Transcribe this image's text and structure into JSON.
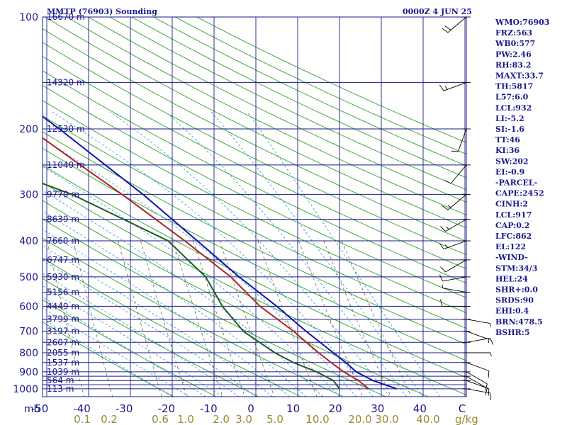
{
  "header": {
    "title": "MMTP (76903) Sounding",
    "time": "0000Z  4 JUN 25"
  },
  "colors": {
    "isobar": "#1a1a8c",
    "isotherm": "#1a1a8c",
    "dry_adiabat": "#2ca02c",
    "moist_adiabat": "#3aa0d8",
    "mixing_ratio": "#7a6a2a",
    "temperature": "#b22222",
    "dewpoint": "#1f5c1f",
    "parcel": "#1010b0",
    "wind": "#000000"
  },
  "indices": [
    "WMO:76903",
    "FRZ:563",
    "WB0:577",
    "PW:2.46",
    "RH:83.2",
    "MAXT:33.7",
    "TH:5817",
    "L57:6.0",
    "LCL:932",
    "LI:-5.2",
    "SI:-1.6",
    "TT:46",
    "KI:36",
    "SW:202",
    "EI:-0.9",
    "-PARCEL-",
    "CAPE:2452",
    "CINH:2",
    "LCL:917",
    "CAP:0.2",
    "LFC:862",
    "EL:122",
    "-WIND-",
    "STM:34/3",
    "HEL:24",
    "SHR+:0.0",
    "SRDS:90",
    "EHI:0.4",
    "BRN:478.5",
    "BSHR:5"
  ],
  "chart_data": {
    "type": "skew-t",
    "title": "MMTP (76903) Sounding",
    "subtitle": "0000Z  4 JUN 25",
    "pressure_axis_label": "mb",
    "mixing_ratio_unit": "g/kg",
    "pressure_ticks": [
      100,
      200,
      300,
      400,
      500,
      600,
      700,
      800,
      900,
      1000
    ],
    "isobar_levels": [
      100,
      150,
      200,
      250,
      300,
      350,
      400,
      450,
      500,
      550,
      600,
      650,
      700,
      750,
      800,
      850,
      900,
      925,
      950,
      975,
      1000
    ],
    "heights": [
      {
        "p": 100,
        "label": "16670 m"
      },
      {
        "p": 150,
        "label": "14320 m"
      },
      {
        "p": 200,
        "label": "12530 m"
      },
      {
        "p": 250,
        "label": "11040 m"
      },
      {
        "p": 300,
        "label": "9770 m"
      },
      {
        "p": 350,
        "label": "8639 m"
      },
      {
        "p": 400,
        "label": "7660 m"
      },
      {
        "p": 450,
        "label": "6747 m"
      },
      {
        "p": 500,
        "label": "5930 m"
      },
      {
        "p": 550,
        "label": "5156 m"
      },
      {
        "p": 600,
        "label": "4449 m"
      },
      {
        "p": 650,
        "label": "3799 m"
      },
      {
        "p": 700,
        "label": "3197 m"
      },
      {
        "p": 750,
        "label": "2607 m"
      },
      {
        "p": 800,
        "label": "2055 m"
      },
      {
        "p": 850,
        "label": "1537 m"
      },
      {
        "p": 900,
        "label": "1039 m"
      },
      {
        "p": 950,
        "label": "564 m"
      },
      {
        "p": 1000,
        "label": "113 m"
      }
    ],
    "temp_ticks": [
      "-50",
      "-40",
      "-30",
      "-20",
      "-10",
      "0",
      "10",
      "20",
      "30",
      "40",
      "C"
    ],
    "mixing_ratio_ticks": [
      "0.1",
      "0.2",
      "0.6",
      "1.0",
      "2.0",
      "3.0",
      "5.0",
      "10.0",
      "20.0",
      "30.0",
      "40.0"
    ],
    "temperature": [
      {
        "p": 1000,
        "t": 27.0
      },
      {
        "p": 950,
        "t": 24.5
      },
      {
        "p": 900,
        "t": 21.0
      },
      {
        "p": 850,
        "t": 18.0
      },
      {
        "p": 800,
        "t": 15.0
      },
      {
        "p": 700,
        "t": 9.0
      },
      {
        "p": 600,
        "t": 1.0
      },
      {
        "p": 500,
        "t": -6.0
      },
      {
        "p": 400,
        "t": -17.0
      },
      {
        "p": 300,
        "t": -32.0
      },
      {
        "p": 250,
        "t": -42.0
      },
      {
        "p": 200,
        "t": -54.0
      },
      {
        "p": 150,
        "t": -69.0
      },
      {
        "p": 130,
        "t": -72.0
      },
      {
        "p": 100,
        "t": -76.0
      }
    ],
    "dewpoint": [
      {
        "p": 1000,
        "t": 20.0
      },
      {
        "p": 950,
        "t": 18.5
      },
      {
        "p": 900,
        "t": 14.5
      },
      {
        "p": 850,
        "t": 9.0
      },
      {
        "p": 800,
        "t": 4.5
      },
      {
        "p": 700,
        "t": -3.0
      },
      {
        "p": 600,
        "t": -8.0
      },
      {
        "p": 500,
        "t": -12.0
      },
      {
        "p": 400,
        "t": -21.0
      },
      {
        "p": 300,
        "t": -44.0
      },
      {
        "p": 250,
        "t": -63.0
      },
      {
        "p": 200,
        "t": -61.0
      },
      {
        "p": 150,
        "t": -78.0
      },
      {
        "p": 100,
        "t": -87.0
      }
    ],
    "parcel": [
      {
        "p": 1000,
        "t": 33.7
      },
      {
        "p": 950,
        "t": 28.0
      },
      {
        "p": 900,
        "t": 24.0
      },
      {
        "p": 850,
        "t": 21.5
      },
      {
        "p": 800,
        "t": 18.5
      },
      {
        "p": 700,
        "t": 12.0
      },
      {
        "p": 600,
        "t": 5.0
      },
      {
        "p": 500,
        "t": -4.0
      },
      {
        "p": 400,
        "t": -14.0
      },
      {
        "p": 300,
        "t": -27.0
      },
      {
        "p": 250,
        "t": -36.0
      },
      {
        "p": 200,
        "t": -47.0
      },
      {
        "p": 150,
        "t": -62.0
      },
      {
        "p": 122,
        "t": -72.0
      }
    ],
    "winds": [
      {
        "p": 1000,
        "dir": 100,
        "spd": 10
      },
      {
        "p": 950,
        "dir": 110,
        "spd": 10
      },
      {
        "p": 925,
        "dir": 120,
        "spd": 10
      },
      {
        "p": 900,
        "dir": 120,
        "spd": 10
      },
      {
        "p": 850,
        "dir": 110,
        "spd": 10
      },
      {
        "p": 800,
        "dir": 90,
        "spd": 5
      },
      {
        "p": 750,
        "dir": 80,
        "spd": 10
      },
      {
        "p": 700,
        "dir": 110,
        "spd": 5
      },
      {
        "p": 650,
        "dir": 100,
        "spd": 5
      },
      {
        "p": 600,
        "dir": 270,
        "spd": 10
      },
      {
        "p": 550,
        "dir": 280,
        "spd": 5
      },
      {
        "p": 500,
        "dir": 260,
        "spd": 10
      },
      {
        "p": 450,
        "dir": 240,
        "spd": 10
      },
      {
        "p": 400,
        "dir": 250,
        "spd": 15
      },
      {
        "p": 350,
        "dir": 240,
        "spd": 15
      },
      {
        "p": 300,
        "dir": 230,
        "spd": 15
      },
      {
        "p": 250,
        "dir": 220,
        "spd": 10
      },
      {
        "p": 200,
        "dir": 200,
        "spd": 10
      },
      {
        "p": 150,
        "dir": 250,
        "spd": 15
      },
      {
        "p": 100,
        "dir": 230,
        "spd": 20
      }
    ]
  }
}
